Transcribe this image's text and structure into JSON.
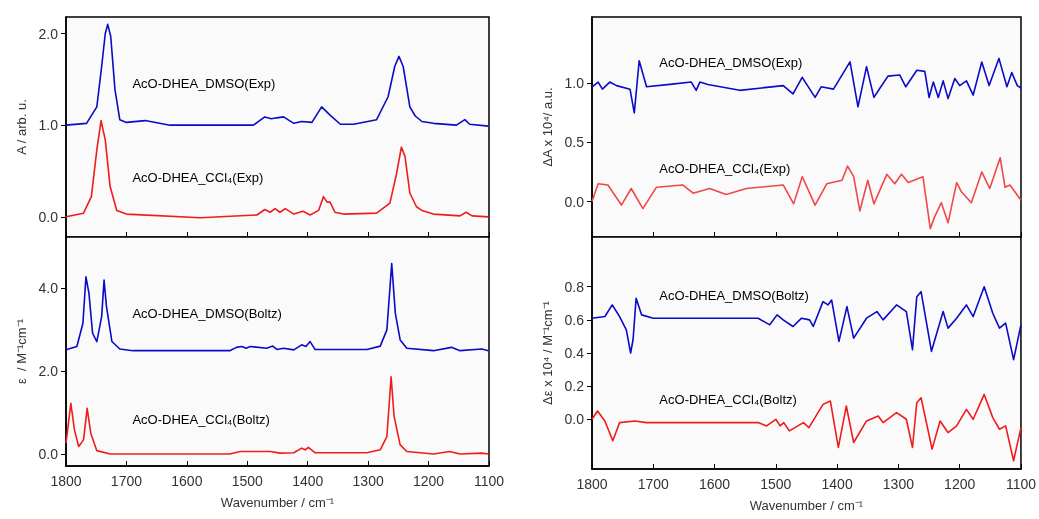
{
  "chart_data": [
    {
      "type": "line",
      "ylabel": "A / arb. u.",
      "xlim": [
        1800,
        1100
      ],
      "xticks": [
        1800,
        1700,
        1600,
        1500,
        1400,
        1300,
        1200,
        1100
      ],
      "ylim": [
        -0.22,
        2.18
      ],
      "yticks": [
        {
          "value": 0,
          "label": "0.0"
        },
        {
          "value": 1,
          "label": "1.0"
        },
        {
          "value": 2,
          "label": "2.0"
        }
      ],
      "tick_labels": "y",
      "marker": "none",
      "series": [
        {
          "name": "AcO-DHEA_DMSO(Exp)",
          "color": "#0a0ac8",
          "x": [
            1800,
            1766,
            1749,
            1741,
            1735,
            1731,
            1726,
            1719,
            1711,
            1700,
            1669,
            1628,
            1490,
            1471,
            1460,
            1451,
            1440,
            1423,
            1410,
            1393,
            1377,
            1363,
            1346,
            1324,
            1286,
            1267,
            1256,
            1249,
            1242,
            1231,
            1222,
            1211,
            1192,
            1154,
            1140,
            1132,
            1101
          ],
          "values": [
            1.0,
            1.02,
            1.2,
            1.64,
            2.0,
            2.1,
            1.97,
            1.39,
            1.06,
            1.03,
            1.05,
            1.0,
            1.0,
            1.09,
            1.07,
            1.08,
            1.09,
            1.02,
            1.04,
            1.03,
            1.2,
            1.11,
            1.01,
            1.01,
            1.06,
            1.31,
            1.64,
            1.75,
            1.64,
            1.2,
            1.1,
            1.04,
            1.02,
            1.0,
            1.06,
            1.01,
            0.99
          ]
        },
        {
          "name": "AcO-DHEA_CCl₄(Exp)",
          "color": "#f01c1c",
          "x": [
            1800,
            1771,
            1758,
            1749,
            1742,
            1735,
            1727,
            1716,
            1700,
            1578,
            1484,
            1471,
            1462,
            1454,
            1446,
            1437,
            1423,
            1408,
            1396,
            1382,
            1374,
            1368,
            1363,
            1355,
            1341,
            1286,
            1264,
            1253,
            1245,
            1239,
            1231,
            1220,
            1211,
            1192,
            1148,
            1138,
            1128,
            1101
          ],
          "values": [
            0.0,
            0.04,
            0.22,
            0.73,
            1.05,
            0.84,
            0.33,
            0.07,
            0.03,
            -0.01,
            0.02,
            0.08,
            0.05,
            0.09,
            0.05,
            0.09,
            0.03,
            0.06,
            0.02,
            0.07,
            0.22,
            0.16,
            0.16,
            0.05,
            0.03,
            0.04,
            0.15,
            0.47,
            0.76,
            0.66,
            0.26,
            0.11,
            0.07,
            0.03,
            0.01,
            0.05,
            0.01,
            0.0
          ]
        }
      ]
    },
    {
      "type": "line",
      "ylabel": "ΔA x 10⁴/ a.u.",
      "xlim": [
        1800,
        1100
      ],
      "xticks": [
        1800,
        1700,
        1600,
        1500,
        1400,
        1300,
        1200,
        1100
      ],
      "ylim": [
        -0.3,
        1.56
      ],
      "yticks": [
        {
          "value": 0,
          "label": "0.0"
        },
        0.5,
        {
          "value": 1,
          "label": "1.0"
        }
      ],
      "tick_labels": "y",
      "marker": "none",
      "series": [
        {
          "name": "AcO-DHEA_DMSO(Exp)",
          "color": "#0a0ac8",
          "x": [
            1800,
            1790,
            1783,
            1771,
            1760,
            1738,
            1731,
            1723,
            1711,
            1673,
            1638,
            1630,
            1624,
            1611,
            1559,
            1488,
            1472,
            1457,
            1436,
            1426,
            1406,
            1379,
            1366,
            1352,
            1340,
            1330,
            1317,
            1298,
            1288,
            1270,
            1257,
            1250,
            1243,
            1235,
            1227,
            1219,
            1208,
            1200,
            1189,
            1178,
            1164,
            1152,
            1136,
            1123,
            1115,
            1106,
            1100
          ],
          "values": [
            0.97,
            1.01,
            0.95,
            1.01,
            0.98,
            0.95,
            0.75,
            1.19,
            0.97,
            0.99,
            1.01,
            0.94,
            1.01,
            0.99,
            0.94,
            0.98,
            0.91,
            1.05,
            0.88,
            0.97,
            0.95,
            1.18,
            0.8,
            1.14,
            0.88,
            0.96,
            1.06,
            1.07,
            0.97,
            1.11,
            1.1,
            0.88,
            1.01,
            0.88,
            1.02,
            0.87,
            1.04,
            0.98,
            1.02,
            0.9,
            1.18,
            0.98,
            1.21,
            0.97,
            1.09,
            0.98,
            0.96
          ]
        },
        {
          "name": "AcO-DHEA_CCl₄(Exp)",
          "color": "#f04848",
          "x": [
            1800,
            1790,
            1774,
            1752,
            1736,
            1717,
            1695,
            1652,
            1635,
            1608,
            1581,
            1548,
            1488,
            1471,
            1457,
            1436,
            1417,
            1392,
            1383,
            1373,
            1363,
            1350,
            1340,
            1319,
            1306,
            1295,
            1284,
            1260,
            1248,
            1241,
            1230,
            1219,
            1205,
            1197,
            1181,
            1164,
            1151,
            1134,
            1126,
            1118,
            1100
          ],
          "values": [
            0.0,
            0.15,
            0.14,
            -0.03,
            0.11,
            -0.06,
            0.12,
            0.14,
            0.07,
            0.11,
            0.06,
            0.11,
            0.14,
            -0.02,
            0.21,
            -0.03,
            0.15,
            0.18,
            0.3,
            0.21,
            -0.08,
            0.18,
            -0.02,
            0.23,
            0.15,
            0.23,
            0.16,
            0.21,
            -0.23,
            -0.13,
            -0.01,
            -0.18,
            0.16,
            0.08,
            -0.01,
            0.25,
            0.11,
            0.37,
            0.12,
            0.14,
            0.01
          ]
        }
      ]
    },
    {
      "type": "line",
      "ylabel": "ε  / M⁻¹cm⁻¹",
      "xlabel": "Wavenumber / cm⁻¹",
      "xlim": [
        1800,
        1100
      ],
      "xticks": [
        1800,
        1700,
        1600,
        1500,
        1400,
        1300,
        1200,
        1100
      ],
      "ylim": [
        -0.29,
        5.23
      ],
      "yticks": [
        {
          "value": 0,
          "label": "0.0"
        },
        {
          "value": 2,
          "label": "2.0"
        },
        {
          "value": 4,
          "label": "4.0"
        }
      ],
      "marker": "none",
      "series": [
        {
          "name": "AcO-DHEA_DMSO(Boltz)",
          "color": "#0a0ac8",
          "x": [
            1800,
            1782,
            1772,
            1767,
            1762,
            1756,
            1749,
            1741,
            1737,
            1733,
            1724,
            1711,
            1689,
            1529,
            1518,
            1509,
            1502,
            1495,
            1468,
            1458,
            1451,
            1440,
            1423,
            1410,
            1403,
            1396,
            1388,
            1302,
            1280,
            1269,
            1261,
            1255,
            1247,
            1236,
            1192,
            1162,
            1148,
            1112,
            1101
          ],
          "values": [
            2.51,
            2.59,
            3.15,
            4.27,
            3.87,
            2.91,
            2.71,
            3.31,
            4.19,
            3.55,
            2.71,
            2.53,
            2.49,
            2.49,
            2.57,
            2.59,
            2.55,
            2.59,
            2.55,
            2.6,
            2.52,
            2.55,
            2.51,
            2.63,
            2.59,
            2.71,
            2.52,
            2.52,
            2.6,
            2.99,
            4.59,
            3.39,
            2.75,
            2.55,
            2.49,
            2.57,
            2.49,
            2.53,
            2.49
          ]
        },
        {
          "name": "AcO-DHEA_CCl₄(Boltz)",
          "color": "#f01c1c",
          "x": [
            1800,
            1792,
            1786,
            1779,
            1771,
            1765,
            1759,
            1749,
            1727,
            1529,
            1512,
            1479,
            1462,
            1446,
            1423,
            1410,
            1404,
            1399,
            1388,
            1302,
            1280,
            1269,
            1262,
            1257,
            1247,
            1236,
            1192,
            1165,
            1148,
            1112,
            1101
          ],
          "values": [
            0.26,
            1.22,
            0.58,
            0.18,
            0.34,
            1.1,
            0.5,
            0.08,
            0.0,
            0.0,
            0.06,
            0.06,
            0.06,
            0.02,
            0.03,
            0.14,
            0.1,
            0.16,
            0.03,
            0.03,
            0.1,
            0.42,
            1.86,
            0.9,
            0.22,
            0.06,
            0.0,
            0.06,
            0.0,
            0.02,
            0.0
          ]
        }
      ]
    },
    {
      "type": "line",
      "ylabel": "Δε x 10⁴ / M⁻¹cm⁻¹",
      "xlabel": "Wavenumber / cm⁻¹",
      "xlim": [
        1800,
        1100
      ],
      "xticks": [
        1800,
        1700,
        1600,
        1500,
        1400,
        1300,
        1200,
        1100
      ],
      "ylim": [
        -0.3,
        1.1
      ],
      "yticks": [
        {
          "value": 0,
          "label": "0.0"
        },
        0.2,
        0.4,
        0.6,
        0.8
      ],
      "marker": "none",
      "series": [
        {
          "name": "AcO-DHEA_DMSO(Boltz)",
          "color": "#0a0ac8",
          "x": [
            1800,
            1779,
            1767,
            1755,
            1744,
            1737,
            1733,
            1728,
            1719,
            1700,
            1529,
            1510,
            1498,
            1488,
            1472,
            1458,
            1445,
            1439,
            1423,
            1415,
            1409,
            1397,
            1384,
            1373,
            1352,
            1335,
            1325,
            1303,
            1287,
            1277,
            1270,
            1263,
            1246,
            1227,
            1219,
            1205,
            1189,
            1178,
            1160,
            1146,
            1135,
            1125,
            1112,
            1100
          ],
          "values": [
            0.61,
            0.62,
            0.69,
            0.62,
            0.54,
            0.4,
            0.48,
            0.73,
            0.63,
            0.61,
            0.61,
            0.57,
            0.63,
            0.6,
            0.56,
            0.61,
            0.6,
            0.56,
            0.71,
            0.69,
            0.72,
            0.47,
            0.68,
            0.49,
            0.61,
            0.65,
            0.6,
            0.69,
            0.65,
            0.42,
            0.74,
            0.77,
            0.41,
            0.65,
            0.55,
            0.61,
            0.69,
            0.62,
            0.8,
            0.64,
            0.55,
            0.58,
            0.36,
            0.57
          ]
        },
        {
          "name": "AcO-DHEA_CCl₄(Boltz)",
          "color": "#f01c1c",
          "x": [
            1800,
            1791,
            1779,
            1766,
            1755,
            1730,
            1711,
            1529,
            1515,
            1500,
            1493,
            1487,
            1478,
            1455,
            1446,
            1423,
            1411,
            1398,
            1385,
            1373,
            1352,
            1333,
            1325,
            1303,
            1287,
            1277,
            1270,
            1263,
            1245,
            1232,
            1219,
            1205,
            1189,
            1178,
            1160,
            1146,
            1135,
            1125,
            1112,
            1100
          ],
          "values": [
            0.0,
            0.05,
            -0.01,
            -0.13,
            -0.02,
            -0.01,
            -0.02,
            -0.02,
            -0.04,
            0.0,
            -0.04,
            -0.02,
            -0.07,
            -0.02,
            -0.05,
            0.09,
            0.11,
            -0.17,
            0.08,
            -0.14,
            -0.01,
            0.02,
            -0.02,
            0.04,
            0.0,
            -0.17,
            0.1,
            0.13,
            -0.18,
            -0.01,
            -0.08,
            -0.04,
            0.06,
            0.0,
            0.15,
            0.01,
            -0.06,
            -0.04,
            -0.25,
            -0.05
          ]
        }
      ]
    }
  ]
}
